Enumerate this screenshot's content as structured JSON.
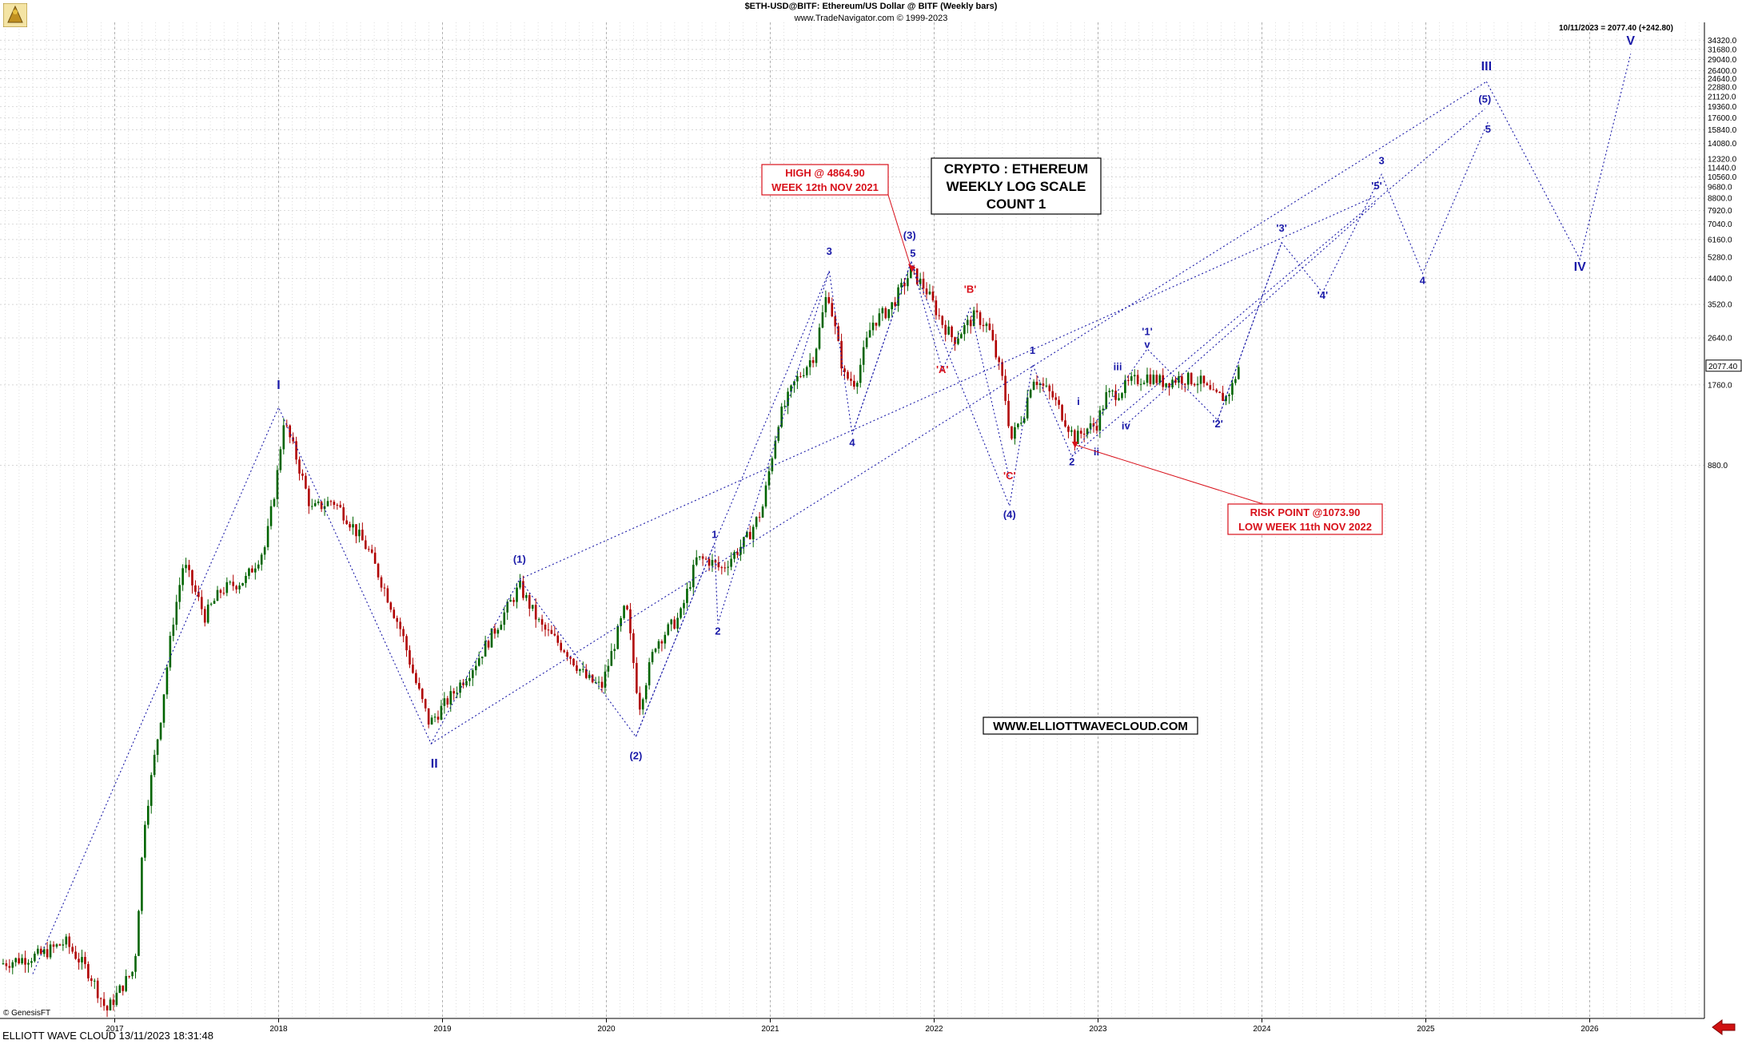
{
  "header": {
    "line1": "$ETH-USD@BITF:  Ethereum/US Dollar @ BITF  (Weekly bars)",
    "line2": "www.TradeNavigator.com © 1999-2023"
  },
  "stamp": "10/11/2023 = 2077.40 (+242.80)",
  "footer": {
    "left": "ELLIOTT WAVE CLOUD   13/11/2023 18:31:48",
    "copyright": "© GenesisFT"
  },
  "colors": {
    "up": "#006400",
    "down": "#b00000",
    "wave": "#1a1aa8",
    "alt": "#d8101a",
    "grid": "#c8c8c8"
  },
  "chart_data": {
    "type": "candlestick",
    "scale": "log",
    "ylim": [
      7.5,
      40000
    ],
    "xlim": [
      2016.3,
      2026.7
    ],
    "x_ticks": [
      "2017",
      "2018",
      "2019",
      "2020",
      "2021",
      "2022",
      "2023",
      "2024",
      "2025",
      "2026"
    ],
    "y_ticks": [
      "34320.0",
      "31680.0",
      "29040.0",
      "26400.0",
      "24640.0",
      "22880.0",
      "21120.0",
      "19360.0",
      "17600.0",
      "15840.0",
      "14080.0",
      "12320.0",
      "11440.0",
      "10560.0",
      "9680.0",
      "8800.0",
      "7920.0",
      "7040.0",
      "6160.0",
      "5280.0",
      "4400.0",
      "3520.0",
      "2640.0",
      "1760.0",
      "880.0"
    ],
    "last_price": "2077.40",
    "price_path": [
      [
        2016.3,
        12
      ],
      [
        2016.55,
        13
      ],
      [
        2016.7,
        14.5
      ],
      [
        2016.85,
        11
      ],
      [
        2016.95,
        8
      ],
      [
        2017.05,
        10
      ],
      [
        2017.12,
        11.5
      ],
      [
        2017.18,
        40
      ],
      [
        2017.28,
        100
      ],
      [
        2017.35,
        220
      ],
      [
        2017.42,
        380
      ],
      [
        2017.55,
        240
      ],
      [
        2017.65,
        300
      ],
      [
        2017.8,
        330
      ],
      [
        2017.92,
        440
      ],
      [
        2017.99,
        800
      ],
      [
        2018.03,
        1300
      ],
      [
        2018.1,
        980
      ],
      [
        2018.2,
        600
      ],
      [
        2018.33,
        650
      ],
      [
        2018.42,
        560
      ],
      [
        2018.55,
        420
      ],
      [
        2018.65,
        300
      ],
      [
        2018.75,
        210
      ],
      [
        2018.83,
        140
      ],
      [
        2018.92,
        95
      ],
      [
        2019.05,
        120
      ],
      [
        2019.2,
        160
      ],
      [
        2019.35,
        230
      ],
      [
        2019.47,
        310
      ],
      [
        2019.6,
        220
      ],
      [
        2019.75,
        180
      ],
      [
        2019.88,
        140
      ],
      [
        2019.97,
        130
      ],
      [
        2020.12,
        265
      ],
      [
        2020.2,
        110
      ],
      [
        2020.3,
        190
      ],
      [
        2020.45,
        240
      ],
      [
        2020.55,
        390
      ],
      [
        2020.62,
        390
      ],
      [
        2020.7,
        360
      ],
      [
        2020.85,
        460
      ],
      [
        2020.95,
        600
      ],
      [
        2021.05,
        1300
      ],
      [
        2021.15,
        1800
      ],
      [
        2021.27,
        2300
      ],
      [
        2021.35,
        4000
      ],
      [
        2021.45,
        1900
      ],
      [
        2021.52,
        1800
      ],
      [
        2021.62,
        3000
      ],
      [
        2021.73,
        3400
      ],
      [
        2021.86,
        4700
      ],
      [
        2021.95,
        4000
      ],
      [
        2022.05,
        3000
      ],
      [
        2022.12,
        2600
      ],
      [
        2022.25,
        3200
      ],
      [
        2022.33,
        2900
      ],
      [
        2022.42,
        1800
      ],
      [
        2022.47,
        1100
      ],
      [
        2022.55,
        1400
      ],
      [
        2022.6,
        1900
      ],
      [
        2022.72,
        1600
      ],
      [
        2022.8,
        1300
      ],
      [
        2022.86,
        1100
      ],
      [
        2022.92,
        1200
      ],
      [
        2022.99,
        1250
      ],
      [
        2023.05,
        1600
      ],
      [
        2023.12,
        1650
      ],
      [
        2023.2,
        1800
      ],
      [
        2023.3,
        1900
      ],
      [
        2023.4,
        1800
      ],
      [
        2023.5,
        1870
      ],
      [
        2023.62,
        1820
      ],
      [
        2023.7,
        1600
      ],
      [
        2023.78,
        1580
      ],
      [
        2023.82,
        1750
      ],
      [
        2023.86,
        2077
      ]
    ],
    "wave_labels": [
      {
        "text": "I",
        "x": 2018.0,
        "y": 1700,
        "c": "wave",
        "s": 16
      },
      {
        "text": "II",
        "x": 2018.95,
        "y": 65,
        "c": "wave",
        "s": 16
      },
      {
        "text": "(1)",
        "x": 2019.47,
        "y": 380,
        "c": "wave",
        "s": 13
      },
      {
        "text": "(2)",
        "x": 2020.18,
        "y": 70,
        "c": "wave",
        "s": 13
      },
      {
        "text": "1",
        "x": 2020.66,
        "y": 470,
        "c": "wave",
        "s": 13
      },
      {
        "text": "2",
        "x": 2020.68,
        "y": 205,
        "c": "wave",
        "s": 13
      },
      {
        "text": "3",
        "x": 2021.36,
        "y": 5400,
        "c": "wave",
        "s": 13
      },
      {
        "text": "4",
        "x": 2021.5,
        "y": 1040,
        "c": "wave",
        "s": 13
      },
      {
        "text": "(3)",
        "x": 2021.85,
        "y": 6200,
        "c": "wave",
        "s": 13
      },
      {
        "text": "5",
        "x": 2021.87,
        "y": 5300,
        "c": "wave",
        "s": 13
      },
      {
        "text": "'A'",
        "x": 2022.05,
        "y": 1950,
        "c": "alt",
        "s": 13
      },
      {
        "text": "'B'",
        "x": 2022.22,
        "y": 3900,
        "c": "alt",
        "s": 13
      },
      {
        "text": "'C'",
        "x": 2022.46,
        "y": 780,
        "c": "alt",
        "s": 13
      },
      {
        "text": "(4)",
        "x": 2022.46,
        "y": 560,
        "c": "wave",
        "s": 13
      },
      {
        "text": "1",
        "x": 2022.6,
        "y": 2300,
        "c": "wave",
        "s": 13
      },
      {
        "text": "2",
        "x": 2022.84,
        "y": 880,
        "c": "wave",
        "s": 13
      },
      {
        "text": "i",
        "x": 2022.88,
        "y": 1480,
        "c": "wave",
        "s": 13
      },
      {
        "text": "ii",
        "x": 2022.99,
        "y": 960,
        "c": "wave",
        "s": 13
      },
      {
        "text": "iii",
        "x": 2023.12,
        "y": 2000,
        "c": "wave",
        "s": 13
      },
      {
        "text": "iv",
        "x": 2023.17,
        "y": 1200,
        "c": "wave",
        "s": 13
      },
      {
        "text": "'1'",
        "x": 2023.3,
        "y": 2700,
        "c": "wave",
        "s": 13
      },
      {
        "text": "v",
        "x": 2023.3,
        "y": 2420,
        "c": "wave",
        "s": 13
      },
      {
        "text": "'2'",
        "x": 2023.73,
        "y": 1220,
        "c": "wave",
        "s": 13
      },
      {
        "text": "'3'",
        "x": 2024.12,
        "y": 6600,
        "c": "wave",
        "s": 13
      },
      {
        "text": "'4'",
        "x": 2024.37,
        "y": 3700,
        "c": "wave",
        "s": 13
      },
      {
        "text": "'5'",
        "x": 2024.7,
        "y": 9500,
        "c": "wave",
        "s": 13
      },
      {
        "text": "3",
        "x": 2024.73,
        "y": 11800,
        "c": "wave",
        "s": 13
      },
      {
        "text": "4",
        "x": 2024.98,
        "y": 4200,
        "c": "wave",
        "s": 13
      },
      {
        "text": "5",
        "x": 2025.38,
        "y": 15500,
        "c": "wave",
        "s": 13
      },
      {
        "text": "(5)",
        "x": 2025.36,
        "y": 20000,
        "c": "wave",
        "s": 13
      },
      {
        "text": "III",
        "x": 2025.37,
        "y": 26500,
        "c": "wave",
        "s": 16
      },
      {
        "text": "IV",
        "x": 2025.94,
        "y": 4700,
        "c": "wave",
        "s": 16
      },
      {
        "text": "V",
        "x": 2026.25,
        "y": 33000,
        "c": "wave",
        "s": 16
      }
    ],
    "annotations": {
      "title_box": [
        "CRYPTO : ETHEREUM",
        "WEEKLY LOG SCALE",
        "COUNT 1"
      ],
      "high_box": [
        "HIGH @ 4864.90",
        "WEEK 12th NOV 2021"
      ],
      "risk_box": [
        "RISK POINT @1073.90",
        "LOW WEEK 11th NOV 2022"
      ],
      "website": "WWW.ELLIOTTWAVECLOUD.COM"
    }
  }
}
